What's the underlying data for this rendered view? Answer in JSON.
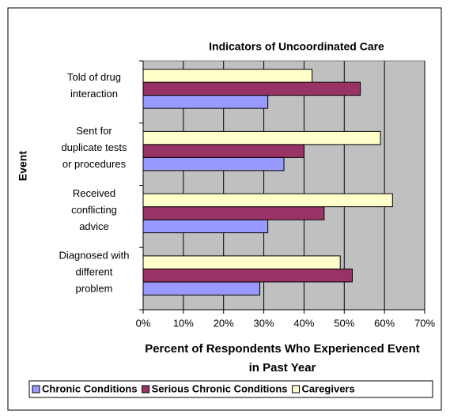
{
  "chart_data": {
    "type": "bar",
    "orientation": "horizontal",
    "title": "Indicators of Uncoordinated Care",
    "ylabel": "Event",
    "xlabel": [
      "Percent of Respondents Who Experienced Event",
      "in Past Year"
    ],
    "categories": [
      "Told of drug interaction",
      "Sent for duplicate tests or procedures",
      "Received conflicting advice",
      "Diagnosed with different problem"
    ],
    "series": [
      {
        "name": "Chronic Conditions",
        "color": "#9999ff",
        "values": [
          31,
          35,
          31,
          29
        ]
      },
      {
        "name": "Serious Chronic Conditions",
        "color": "#993366",
        "values": [
          54,
          40,
          45,
          52
        ]
      },
      {
        "name": "Caregivers",
        "color": "#ffffcc",
        "values": [
          42,
          59,
          62,
          49
        ]
      }
    ],
    "xlim": [
      0,
      70
    ],
    "xticks": [
      {
        "value": 0,
        "label": "0%"
      },
      {
        "value": 10,
        "label": "10%"
      },
      {
        "value": 20,
        "label": "20%"
      },
      {
        "value": 30,
        "label": "30%"
      },
      {
        "value": 40,
        "label": "40%"
      },
      {
        "value": 50,
        "label": "50%"
      },
      {
        "value": 60,
        "label": "60%"
      },
      {
        "value": 70,
        "label": "70%"
      }
    ],
    "grid": true,
    "plot_background": "#c0c0c0",
    "legend": "bottom"
  }
}
